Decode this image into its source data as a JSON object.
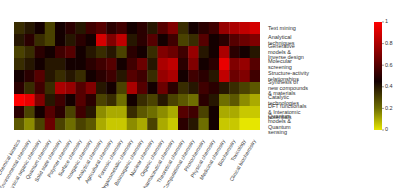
{
  "chart_data": {
    "type": "heatmap",
    "rows": [
      "Text mining",
      "Analytical techniques",
      "Generative models & Inverse design",
      "Molecular screening",
      "Structure-activity relationships",
      "Synthesis of new compounds & materials",
      "Catalytic technologies",
      "DFT functionals & Interatomic potentials",
      "Quantum models & Quantum sensing"
    ],
    "columns": [
      "Chemical kinetics",
      "Environmental chemistry",
      "Physical organic chemistry",
      "Quantum chemistry",
      "Solid state chemistry",
      "Polymer chemistry",
      "Surface chemistry",
      "Inorganic chemistry",
      "Analytical chemistry",
      "Agricultural chemistry",
      "Forensic chemistry",
      "Organometallic chemistry",
      "Bioinorganic chemistry",
      "Nuclear chemistry",
      "Organic chemistry",
      "Pharmaceutical chemistry",
      "Theoretical chemistry",
      "Computational chemistry",
      "Photochemistry",
      "Physical chemistry",
      "Medicinal chemistry",
      "Biochemistry",
      "Toxicology",
      "Clinical biochemistry"
    ],
    "cells": [
      [
        0.35,
        0.4,
        0.45,
        0.3,
        0.45,
        0.5,
        0.4,
        0.55,
        0.6,
        0.5,
        0.55,
        0.45,
        0.5,
        0.4,
        0.6,
        0.7,
        0.35,
        0.45,
        0.5,
        0.55,
        0.75,
        0.8,
        0.85,
        0.9
      ],
      [
        0.4,
        0.5,
        0.35,
        0.3,
        0.45,
        0.4,
        0.5,
        0.45,
        0.9,
        0.7,
        0.85,
        0.4,
        0.5,
        0.6,
        0.45,
        0.55,
        0.3,
        0.35,
        0.6,
        0.45,
        0.5,
        0.6,
        0.65,
        0.7
      ],
      [
        0.3,
        0.35,
        0.5,
        0.45,
        0.55,
        0.6,
        0.45,
        0.4,
        0.35,
        0.4,
        0.3,
        0.5,
        0.45,
        0.35,
        0.7,
        0.65,
        0.55,
        0.75,
        0.4,
        0.45,
        0.8,
        0.5,
        0.45,
        0.4
      ],
      [
        0.35,
        0.4,
        0.45,
        0.4,
        0.4,
        0.45,
        0.45,
        0.5,
        0.55,
        0.6,
        0.45,
        0.55,
        0.65,
        0.4,
        0.8,
        0.85,
        0.5,
        0.7,
        0.45,
        0.5,
        0.95,
        0.7,
        0.75,
        0.6
      ],
      [
        0.45,
        0.5,
        0.6,
        0.4,
        0.35,
        0.4,
        0.35,
        0.45,
        0.5,
        0.55,
        0.4,
        0.6,
        0.55,
        0.35,
        0.75,
        0.8,
        0.45,
        0.55,
        0.5,
        0.4,
        0.85,
        0.65,
        0.7,
        0.55
      ],
      [
        0.5,
        0.35,
        0.55,
        0.35,
        0.8,
        0.75,
        0.6,
        0.7,
        0.4,
        0.45,
        0.3,
        0.8,
        0.6,
        0.45,
        0.65,
        0.5,
        0.35,
        0.4,
        0.55,
        0.5,
        0.4,
        0.35,
        0.3,
        0.25
      ],
      [
        1.0,
        0.95,
        0.7,
        0.4,
        0.55,
        0.45,
        0.6,
        0.5,
        0.3,
        0.35,
        0.2,
        0.45,
        0.35,
        0.3,
        0.4,
        0.3,
        0.25,
        0.2,
        0.5,
        0.4,
        0.2,
        0.25,
        0.15,
        0.1
      ],
      [
        0.5,
        0.3,
        0.45,
        0.6,
        0.5,
        0.3,
        0.55,
        0.4,
        0.15,
        0.1,
        0.1,
        0.35,
        0.25,
        0.2,
        0.15,
        0.1,
        0.6,
        0.55,
        0.3,
        0.45,
        0.1,
        0.1,
        0.05,
        0.05
      ],
      [
        0.25,
        0.15,
        0.3,
        0.65,
        0.3,
        0.2,
        0.3,
        0.25,
        0.1,
        0.05,
        0.05,
        0.15,
        0.1,
        0.3,
        0.1,
        0.05,
        0.5,
        0.4,
        0.2,
        0.45,
        0.05,
        0.05,
        0.0,
        0.0
      ]
    ],
    "colorbar": {
      "range": [
        0,
        1
      ],
      "ticks": [
        0,
        0.2,
        0.4,
        0.6,
        0.8,
        1
      ]
    }
  }
}
